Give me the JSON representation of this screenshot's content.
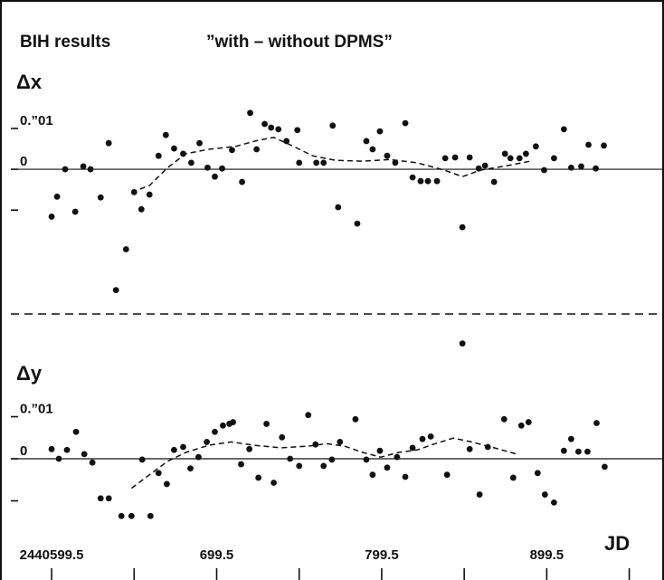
{
  "chart_data": [
    {
      "type": "scatter",
      "title": "BIH results",
      "subtitle": "”with – without DPMS”",
      "ylabel": "Δx",
      "xlim": [
        2440574.8,
        2440970.0
      ],
      "ylim": [
        -0.035,
        0.0193
      ],
      "yticks": [
        0,
        {
          "value": 0.01,
          "label": "0.”01"
        }
      ],
      "yminor_ticks": [
        -0.01
      ],
      "color": "#111111",
      "x": [
        2440599.5,
        2440602.8,
        2440607.7,
        2440613.8,
        2440618.7,
        2440623.1,
        2440629.2,
        2440634.1,
        2440638.5,
        2440644.6,
        2440649.5,
        2440653.9,
        2440658.8,
        2440664.3,
        2440668.7,
        2440673.7,
        2440679.2,
        2440684.1,
        2440689.1,
        2440694.0,
        2440698.4,
        2440702.8,
        2440708.8,
        2440714.9,
        2440719.8,
        2440723.7,
        2440728.6,
        2440732.5,
        2440736.9,
        2440741.8,
        2440748.4,
        2440749.5,
        2440759.9,
        2440764.3,
        2440769.8,
        2440773.1,
        2440784.7,
        2440790.2,
        2440794.0,
        2440798.4,
        2440802.8,
        2440807.7,
        2440813.8,
        2440818.2,
        2440823.1,
        2440827.5,
        2440833.0,
        2440838.0,
        2440844.0,
        2440848.4,
        2440852.8,
        2440858.3,
        2440862.1,
        2440867.6,
        2440874.2,
        2440877.5,
        2440883.0,
        2440886.9,
        2440892.9,
        2440897.9,
        2440903.9,
        2440909.9,
        2440914.3,
        2440920.4,
        2440924.8,
        2440929.2,
        2440934.1
      ],
      "values": [
        -0.0116,
        -0.0067,
        0,
        -0.0104,
        0.0007,
        0,
        -0.0069,
        0.0064,
        -0.0296,
        -0.0196,
        -0.0056,
        -0.0098,
        -0.0062,
        0.0033,
        0.0084,
        0.0051,
        0.0038,
        0.0016,
        0.0064,
        0.0004,
        -0.0018,
        0.0002,
        0.0047,
        -0.0031,
        0.0138,
        0.0049,
        0.0111,
        0.0102,
        0.0098,
        0.0069,
        0.0096,
        0.0016,
        0.0016,
        0.0016,
        0.0107,
        -0.0093,
        -0.0133,
        0.0069,
        0.0049,
        0.0093,
        0.0033,
        0.0016,
        0.0113,
        -0.002,
        -0.0029,
        -0.0029,
        -0.0029,
        0.0027,
        0.0029,
        -0.0142,
        0.0029,
        0.0002,
        0.0009,
        -0.0031,
        0.0038,
        0.0027,
        0.0027,
        0.0038,
        0.0056,
        -0.0002,
        0.0027,
        0.0098,
        0.0004,
        0.0007,
        0.006,
        0.0002,
        0.0058
      ],
      "trend_x": [
        2440647.9,
        2440658.8,
        2440669.8,
        2440680.8,
        2440694.6,
        2440711.0,
        2440724.7,
        2440734.1,
        2440744.0,
        2440757.7,
        2440771.4,
        2440788.0,
        2440804.4,
        2440821.0,
        2440837.4,
        2440848.4,
        2440859.4,
        2440875.9,
        2440889.6
      ],
      "trend_values": [
        -0.0056,
        -0.004,
        0.0004,
        0.0038,
        0.0049,
        0.0056,
        0.0071,
        0.0078,
        0.006,
        0.0033,
        0.0022,
        0.002,
        0.0024,
        0.0016,
        -0.0002,
        -0.0018,
        -0.0002,
        0.0009,
        0.002
      ]
    },
    {
      "type": "scatter",
      "ylabel": "Δy",
      "xlabel": "JD",
      "xlim": [
        2440574.8,
        2440970.0
      ],
      "xticks": [
        2440599.5,
        {
          "value": 2440699.5,
          "label": "699.5"
        },
        {
          "value": 2440799.5,
          "label": "799.5"
        },
        {
          "value": 2440899.5,
          "label": "899.5"
        }
      ],
      "xminor_ticks": [
        2440649.5,
        2440749.5,
        2440849.5,
        2440949.5
      ],
      "ylim": [
        -0.0286,
        0.0342
      ],
      "yticks": [
        0,
        {
          "value": 0.01,
          "label": "0.”01"
        }
      ],
      "yminor_ticks": [
        -0.01
      ],
      "color": "#111111",
      "x": [
        2440599.5,
        2440603.9,
        2440608.8,
        2440614.3,
        2440619.3,
        2440624.2,
        2440629.2,
        2440634.1,
        2440641.8,
        2440647.9,
        2440654.4,
        2440659.4,
        2440664.3,
        2440669.3,
        2440673.7,
        2440679.2,
        2440683.6,
        2440688.5,
        2440693.5,
        2440698.4,
        2440703.3,
        2440707.2,
        2440709.4,
        2440714.3,
        2440719.3,
        2440724.8,
        2440729.7,
        2440734.1,
        2440739.1,
        2440744.0,
        2440749.5,
        2440755.0,
        2440759.4,
        2440764.3,
        2440769.3,
        2440774.2,
        2440783.6,
        2440790.2,
        2440794.0,
        2440798.4,
        2440802.8,
        2440808.8,
        2440813.8,
        2440818.2,
        2440824.2,
        2440829.2,
        2440839.1,
        2440848.4,
        2440852.8,
        2440858.8,
        2440863.8,
        2440873.7,
        2440879.2,
        2440884.1,
        2440888.5,
        2440894.0,
        2440898.4,
        2440903.9,
        2440909.9,
        2440914.3,
        2440918.7,
        2440924.2,
        2440929.7,
        2440934.6
      ],
      "values": [
        0.0023,
        0,
        0.0021,
        0.0064,
        0.0011,
        -0.0009,
        -0.0094,
        -0.0094,
        -0.0136,
        -0.0136,
        -0.0002,
        -0.0136,
        -0.0034,
        -0.006,
        0.0021,
        0.0028,
        -0.0023,
        0.0004,
        0.004,
        0.0064,
        0.0079,
        0.0083,
        0.0087,
        -0.0013,
        0.0023,
        -0.0045,
        0.0083,
        -0.0057,
        0.0051,
        0,
        -0.0017,
        0.0104,
        0.0034,
        -0.0017,
        -0.0002,
        0.004,
        0.0094,
        -0.0002,
        -0.0038,
        0.0019,
        -0.0021,
        0.0004,
        -0.0043,
        0.0026,
        0.0047,
        0.0053,
        -0.0038,
        0.0274,
        0.0023,
        -0.0085,
        0.0028,
        0.0094,
        -0.0045,
        0.0079,
        0.0087,
        -0.0034,
        -0.0085,
        -0.0104,
        0.0019,
        0.0047,
        0.0017,
        0.0017,
        0.0085,
        -0.0019
      ],
      "trend_x": [
        2440647.9,
        2440658.8,
        2440669.8,
        2440680.8,
        2440694.6,
        2440708.3,
        2440722.0,
        2440738.5,
        2440755.0,
        2440766.0,
        2440777.0,
        2440788.0,
        2440799.0,
        2440809.9,
        2440820.9,
        2440831.9,
        2440842.9,
        2440853.9,
        2440867.6,
        2440881.4
      ],
      "trend_values": [
        -0.007,
        -0.0038,
        -0.0006,
        0.0015,
        0.0032,
        0.004,
        0.0032,
        0.0026,
        0.003,
        0.0036,
        0.003,
        0.0015,
        0.0004,
        0.0015,
        0.0021,
        0.0036,
        0.0049,
        0.004,
        0.0026,
        0.0011
      ]
    }
  ]
}
